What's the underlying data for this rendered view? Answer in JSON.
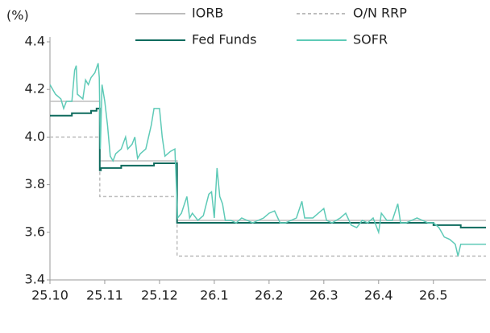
{
  "chart_data": {
    "type": "line",
    "y_label": "(%)",
    "xlim": [
      0,
      7.96
    ],
    "xticks": [
      {
        "value": 0,
        "label": "25.10"
      },
      {
        "value": 1,
        "label": "25.11"
      },
      {
        "value": 2,
        "label": "25.12"
      },
      {
        "value": 3,
        "label": "26.1"
      },
      {
        "value": 4,
        "label": "26.2"
      },
      {
        "value": 5,
        "label": "26.3"
      },
      {
        "value": 6,
        "label": "26.4"
      },
      {
        "value": 7,
        "label": "26.5"
      }
    ],
    "ylim": [
      3.4,
      4.4
    ],
    "yticks": [
      {
        "value": 3.4,
        "label": "3.4"
      },
      {
        "value": 3.6,
        "label": "3.6"
      },
      {
        "value": 3.8,
        "label": "3.8"
      },
      {
        "value": 4,
        "label": "4.0"
      },
      {
        "value": 4.2,
        "label": "4.2"
      },
      {
        "value": 4.4,
        "label": "4.4"
      }
    ],
    "grid": false,
    "legend": "top",
    "series": [
      {
        "name": "IORB",
        "color": "#bdbdbd",
        "style": "solid",
        "x": [
          0,
          0.91,
          0.91,
          2.32,
          2.32,
          7.96
        ],
        "values": [
          4.15,
          4.15,
          3.9,
          3.9,
          3.65,
          3.65
        ]
      },
      {
        "name": "O/N RRP",
        "color": "#bdbdbd",
        "style": "dashed",
        "x": [
          0,
          0.91,
          0.91,
          2.32,
          2.32,
          7.96
        ],
        "values": [
          4.0,
          4.0,
          3.75,
          3.75,
          3.5,
          3.5
        ]
      },
      {
        "name": "Fed Funds",
        "color": "#0f6b5e",
        "style": "solid",
        "x": [
          0,
          0.4,
          0.4,
          0.75,
          0.75,
          0.85,
          0.85,
          0.91,
          0.91,
          0.93,
          0.93,
          1.3,
          1.3,
          1.9,
          1.9,
          2.32,
          2.32,
          7.0,
          7.0,
          7.5,
          7.5,
          7.96
        ],
        "values": [
          4.09,
          4.09,
          4.1,
          4.1,
          4.11,
          4.11,
          4.12,
          4.12,
          3.86,
          3.86,
          3.87,
          3.87,
          3.88,
          3.88,
          3.89,
          3.89,
          3.64,
          3.64,
          3.63,
          3.63,
          3.62,
          3.62
        ]
      },
      {
        "name": "SOFR",
        "color": "#5ecab7",
        "style": "solid",
        "x": [
          0,
          0.1,
          0.2,
          0.25,
          0.3,
          0.4,
          0.45,
          0.48,
          0.5,
          0.55,
          0.6,
          0.65,
          0.7,
          0.75,
          0.82,
          0.88,
          0.9,
          0.92,
          0.95,
          1.0,
          1.05,
          1.1,
          1.15,
          1.2,
          1.3,
          1.38,
          1.42,
          1.5,
          1.55,
          1.6,
          1.65,
          1.75,
          1.85,
          1.9,
          2.0,
          2.05,
          2.1,
          2.2,
          2.28,
          2.33,
          2.4,
          2.5,
          2.55,
          2.6,
          2.7,
          2.8,
          2.9,
          2.95,
          3.0,
          3.05,
          3.1,
          3.15,
          3.2,
          3.3,
          3.4,
          3.5,
          3.6,
          3.7,
          3.8,
          3.9,
          4.0,
          4.1,
          4.2,
          4.3,
          4.4,
          4.5,
          4.6,
          4.65,
          4.8,
          4.9,
          5.0,
          5.05,
          5.15,
          5.3,
          5.4,
          5.5,
          5.6,
          5.7,
          5.8,
          5.9,
          6.0,
          6.05,
          6.15,
          6.25,
          6.35,
          6.4,
          6.5,
          6.6,
          6.7,
          6.8,
          6.9,
          7.0,
          7.1,
          7.2,
          7.3,
          7.4,
          7.45,
          7.5,
          7.6,
          7.96
        ],
        "values": [
          4.22,
          4.18,
          4.16,
          4.12,
          4.15,
          4.15,
          4.28,
          4.3,
          4.18,
          4.17,
          4.16,
          4.24,
          4.22,
          4.25,
          4.27,
          4.31,
          4.25,
          3.95,
          4.22,
          4.15,
          4.05,
          3.92,
          3.9,
          3.93,
          3.95,
          4.0,
          3.95,
          3.97,
          4.0,
          3.91,
          3.93,
          3.95,
          4.05,
          4.12,
          4.12,
          4.0,
          3.92,
          3.94,
          3.95,
          3.66,
          3.68,
          3.75,
          3.66,
          3.68,
          3.65,
          3.67,
          3.76,
          3.77,
          3.66,
          3.87,
          3.75,
          3.72,
          3.65,
          3.65,
          3.64,
          3.66,
          3.65,
          3.64,
          3.65,
          3.66,
          3.68,
          3.69,
          3.64,
          3.64,
          3.65,
          3.66,
          3.73,
          3.66,
          3.66,
          3.68,
          3.7,
          3.65,
          3.64,
          3.66,
          3.68,
          3.63,
          3.62,
          3.65,
          3.64,
          3.66,
          3.6,
          3.68,
          3.65,
          3.65,
          3.72,
          3.64,
          3.64,
          3.65,
          3.66,
          3.65,
          3.64,
          3.64,
          3.62,
          3.58,
          3.57,
          3.55,
          3.5,
          3.55,
          3.55,
          3.55
        ]
      }
    ]
  }
}
